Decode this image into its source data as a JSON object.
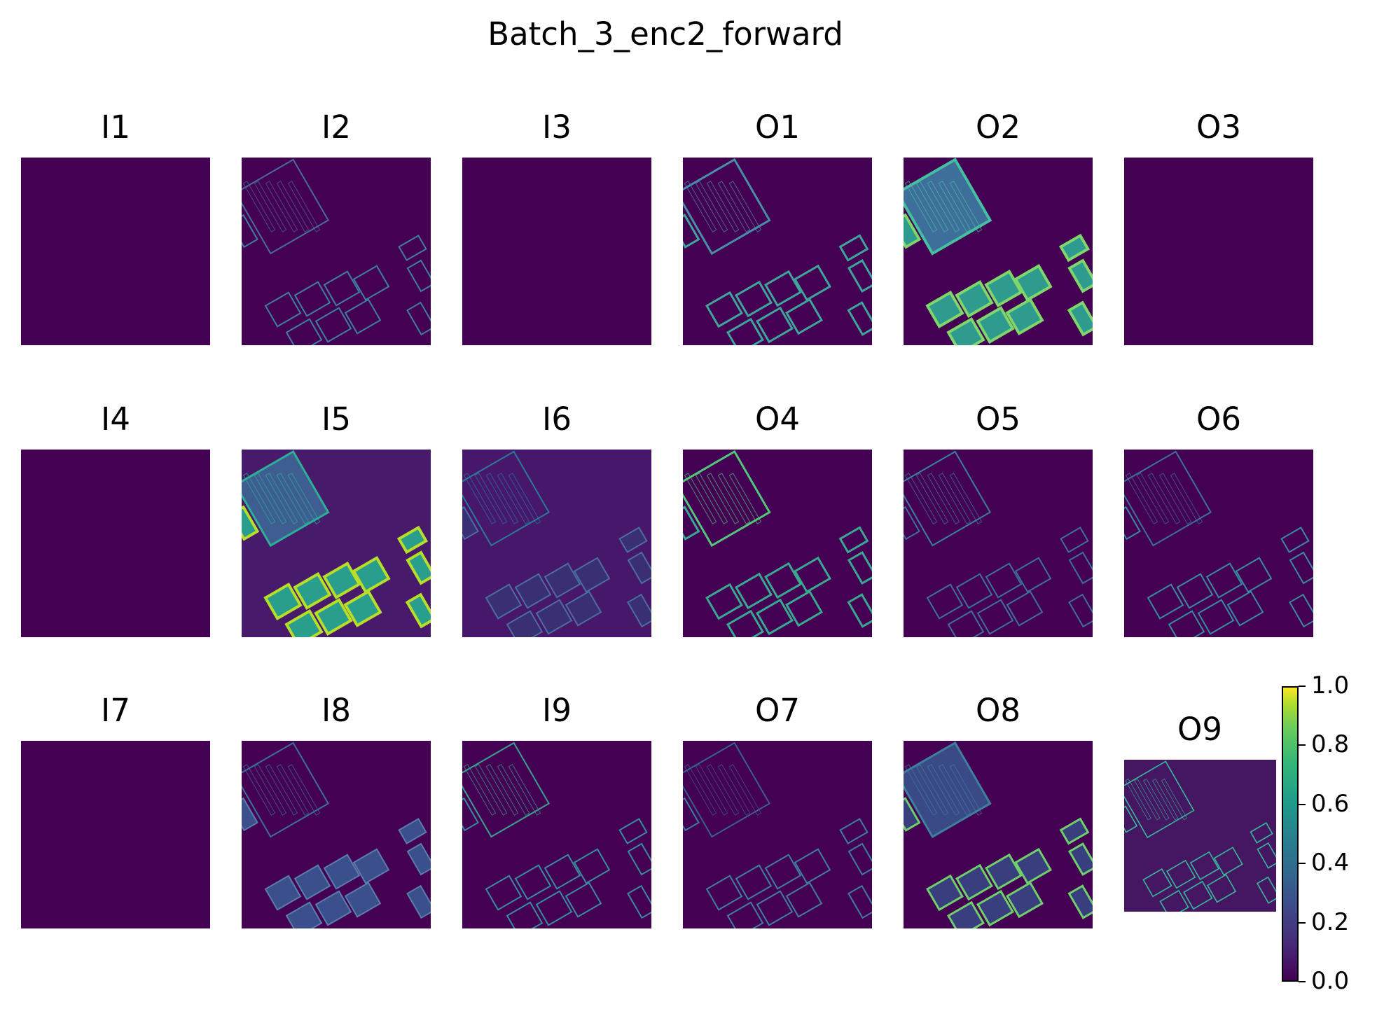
{
  "title": "Batch_3_enc2_forward",
  "colormap": "viridis",
  "colors": {
    "background": "#ffffff",
    "empty": "#440154",
    "i5_background": "#471a6c",
    "i6_background": "#46176a",
    "o9_background": "#451762"
  },
  "panels": [
    {
      "label": "I1",
      "content": "empty"
    },
    {
      "label": "I2",
      "content": "features"
    },
    {
      "label": "I3",
      "content": "empty"
    },
    {
      "label": "O1",
      "content": "features"
    },
    {
      "label": "O2",
      "content": "features"
    },
    {
      "label": "O3",
      "content": "empty"
    },
    {
      "label": "I4",
      "content": "empty"
    },
    {
      "label": "I5",
      "content": "features"
    },
    {
      "label": "I6",
      "content": "features"
    },
    {
      "label": "O4",
      "content": "features"
    },
    {
      "label": "O5",
      "content": "features"
    },
    {
      "label": "O6",
      "content": "features"
    },
    {
      "label": "I7",
      "content": "empty"
    },
    {
      "label": "I8",
      "content": "features"
    },
    {
      "label": "I9",
      "content": "features"
    },
    {
      "label": "O7",
      "content": "features"
    },
    {
      "label": "O8",
      "content": "features"
    },
    {
      "label": "O9",
      "content": "features"
    }
  ],
  "chart_data": {
    "type": "heatmap",
    "title": "Batch_3_enc2_forward",
    "panel_labels": [
      "I1",
      "I2",
      "I3",
      "O1",
      "O2",
      "O3",
      "I4",
      "I5",
      "I6",
      "O4",
      "O5",
      "O6",
      "I7",
      "I8",
      "I9",
      "O7",
      "O8",
      "O9"
    ],
    "grid": "3 rows x 6 columns",
    "colorbar": {
      "cmap": "viridis",
      "range": [
        0.0,
        1.0
      ],
      "ticks": [
        "0.0",
        "0.2",
        "0.4",
        "0.6",
        "0.8",
        "1.0"
      ]
    }
  }
}
